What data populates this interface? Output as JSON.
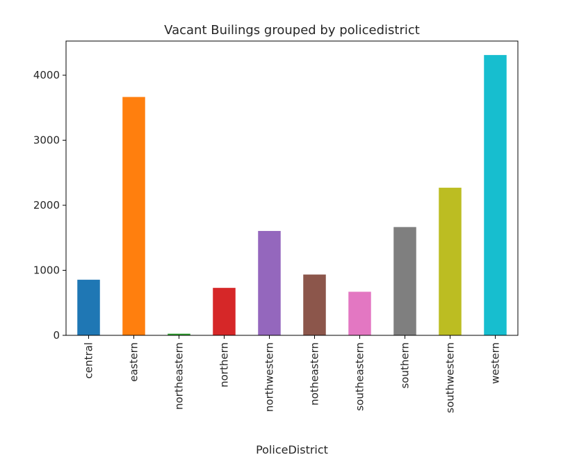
{
  "chart_data": {
    "type": "bar",
    "title": "Vacant Builings grouped by policedistrict",
    "xlabel": "PoliceDistrict",
    "ylabel": "",
    "categories": [
      "central",
      "eastern",
      "northeastern",
      "northern",
      "northwestern",
      "notheastern",
      "southeastern",
      "southern",
      "southwestern",
      "western"
    ],
    "values": [
      855,
      3665,
      25,
      730,
      1605,
      935,
      670,
      1665,
      2270,
      4310
    ],
    "colors": [
      "#1f77b4",
      "#ff7f0e",
      "#2ca02c",
      "#d62728",
      "#9467bd",
      "#8c564b",
      "#e377c2",
      "#7f7f7f",
      "#bcbd22",
      "#17becf"
    ],
    "yticks": [
      0,
      1000,
      2000,
      3000,
      4000
    ],
    "ylim": [
      0,
      4525
    ],
    "grid": false,
    "legend": false
  }
}
